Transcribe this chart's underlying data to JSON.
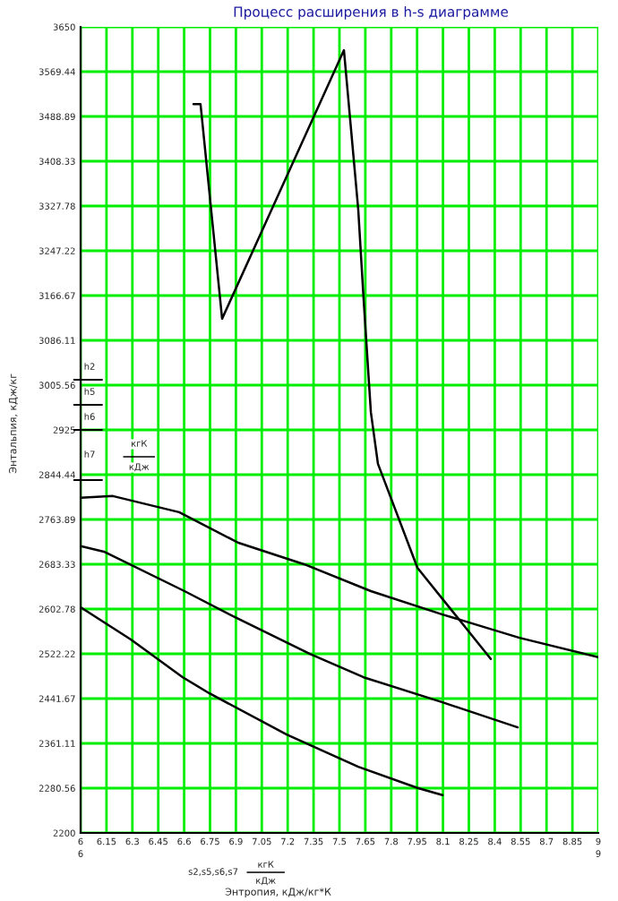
{
  "chart_data": {
    "type": "line",
    "title": "Процесс расширения в h-s диаграмме",
    "xlabel": "Энтропия, кДж/кг*К",
    "ylabel": "Энтальпия, кДж/кг",
    "xlim": [
      6,
      9
    ],
    "xticks": [
      6,
      6.15,
      6.3,
      6.45,
      6.6,
      6.75,
      6.9,
      7.05,
      7.2,
      7.35,
      7.5,
      7.65,
      7.8,
      7.95,
      8.1,
      8.25,
      8.4,
      8.55,
      8.7,
      8.85,
      9
    ],
    "ylim": [
      2200,
      3650
    ],
    "yticks": [
      2200,
      2280.56,
      2361.11,
      2441.67,
      2522.22,
      2602.78,
      2683.33,
      2763.89,
      2844.44,
      2925,
      3005.56,
      3086.11,
      3166.67,
      3247.22,
      3327.78,
      3408.33,
      3488.89,
      3569.44,
      3650
    ],
    "grid": true,
    "line_style": "solid",
    "annotations": [
      "6",
      "9",
      "s2,s5,s6,s7",
      "кгК",
      "кДж",
      "h2",
      "h5",
      "h6",
      "h7",
      "кгК",
      "кДж"
    ],
    "series": [
      {
        "color": "#000000",
        "x": [
          6.654,
          6.695,
          6.82,
          7.526,
          7.609,
          7.64,
          7.682,
          7.723,
          7.952,
          8.128,
          8.377
        ],
        "values": [
          3511,
          3511,
          3125,
          3608,
          3321,
          3160,
          2957,
          2864,
          2677,
          2609,
          2513
        ]
      },
      {
        "color": "#000000",
        "x": [
          6.0,
          6.187,
          6.571,
          6.914,
          7.298,
          7.682,
          8.097,
          8.543,
          9.0
        ],
        "values": [
          2803,
          2806,
          2777,
          2722,
          2683,
          2635,
          2593,
          2551,
          2516
        ]
      },
      {
        "color": "#000000",
        "x": [
          6.0,
          6.135,
          6.602,
          6.882,
          7.329,
          7.64,
          8.097,
          8.533
        ],
        "values": [
          2716,
          2706,
          2635,
          2590,
          2522,
          2480,
          2435,
          2390
        ]
      },
      {
        "color": "#000000",
        "x": [
          6.0,
          6.291,
          6.592,
          6.747,
          7.194,
          7.609,
          7.952,
          8.097
        ],
        "values": [
          2606,
          2548,
          2480,
          2451,
          2377,
          2319,
          2281,
          2268
        ]
      }
    ]
  }
}
